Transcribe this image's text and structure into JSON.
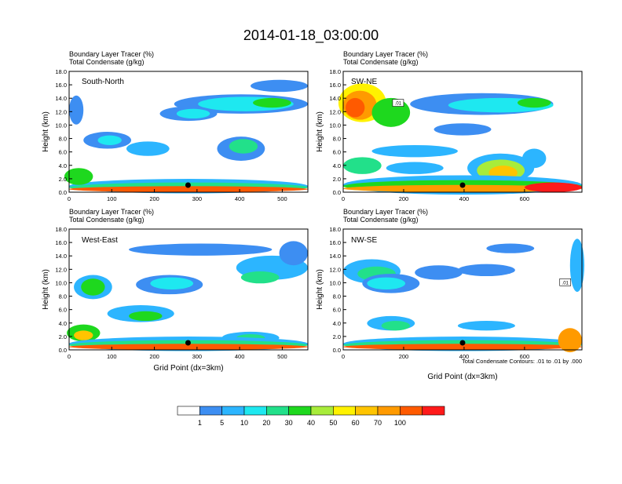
{
  "figure": {
    "title": "2014-01-18_03:00:00",
    "footnote": "Total Condensate Contours: .01 to .01 by .000"
  },
  "colors": {
    "levels": [
      "#ffffff",
      "#3d8ef2",
      "#2cb5ff",
      "#1ee8f0",
      "#22e08a",
      "#1ed81e",
      "#a8ec3a",
      "#fff200",
      "#ffc400",
      "#ff9a00",
      "#ff5a00",
      "#ff1a1a"
    ]
  },
  "chart_data": [
    {
      "type": "heatmap",
      "subtitle_line1": "Boundary Layer Tracer   (%)",
      "subtitle_line2": "Total Condensate   (g/kg)",
      "panel_label": "South-North",
      "ylabel": "Height (km)",
      "xlabel": "",
      "xlim": [
        0,
        560
      ],
      "ylim": [
        0,
        18
      ],
      "xticks": [
        "0",
        "100",
        "200",
        "300",
        "400",
        "500"
      ],
      "yticks": [
        "0.0",
        "2.0",
        "4.0",
        "6.0",
        "8.0",
        "10.0",
        "12.0",
        "14.0",
        "16.0",
        "18.0"
      ],
      "marker_x": 279,
      "contour_label": ""
    },
    {
      "type": "heatmap",
      "subtitle_line1": "Boundary Layer Tracer   (%)",
      "subtitle_line2": "Total Condensate   (g/kg)",
      "panel_label": "SW-NE",
      "ylabel": "Height (km)",
      "xlabel": "",
      "xlim": [
        0,
        790
      ],
      "ylim": [
        0,
        18
      ],
      "xticks": [
        "0",
        "200",
        "400",
        "600"
      ],
      "yticks": [
        "0.0",
        "2.0",
        "4.0",
        "6.0",
        "8.0",
        "10.0",
        "12.0",
        "14.0",
        "16.0",
        "18.0"
      ],
      "marker_x": 395,
      "contour_label": ".01"
    },
    {
      "type": "heatmap",
      "subtitle_line1": "Boundary Layer Tracer   (%)",
      "subtitle_line2": "Total Condensate   (g/kg)",
      "panel_label": "West-East",
      "ylabel": "Height (km)",
      "xlabel": "Grid Point (dx=3km)",
      "xlim": [
        0,
        560
      ],
      "ylim": [
        0,
        18
      ],
      "xticks": [
        "0",
        "100",
        "200",
        "300",
        "400",
        "500"
      ],
      "yticks": [
        "0.0",
        "2.0",
        "4.0",
        "6.0",
        "8.0",
        "10.0",
        "12.0",
        "14.0",
        "16.0",
        "18.0"
      ],
      "marker_x": 279,
      "contour_label": ""
    },
    {
      "type": "heatmap",
      "subtitle_line1": "Boundary Layer Tracer   (%)",
      "subtitle_line2": "Total Condensate   (g/kg)",
      "panel_label": "NW-SE",
      "ylabel": "Height (km)",
      "xlabel": "Grid Point (dx=3km)",
      "xlim": [
        0,
        790
      ],
      "ylim": [
        0,
        18
      ],
      "xticks": [
        "0",
        "200",
        "400",
        "600"
      ],
      "yticks": [
        "0.0",
        "2.0",
        "4.0",
        "6.0",
        "8.0",
        "10.0",
        "12.0",
        "14.0",
        "16.0",
        "18.0"
      ],
      "marker_x": 395,
      "contour_label": ".01"
    }
  ],
  "colorbar": {
    "labels": [
      "1",
      "5",
      "10",
      "20",
      "30",
      "40",
      "50",
      "60",
      "70",
      "100"
    ]
  }
}
